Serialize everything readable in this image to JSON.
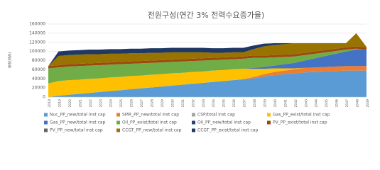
{
  "chart_data": {
    "type": "stacked_area",
    "title": "전원구성(연간 3% 전력수요증가율)",
    "y_label": "용량(MW)",
    "categories": [
      "2018",
      "2019",
      "2020",
      "2021",
      "2022",
      "2023",
      "2024",
      "2025",
      "2026",
      "2027",
      "2028",
      "2029",
      "2030",
      "2031",
      "2032",
      "2033",
      "2034",
      "2035",
      "2036",
      "2037",
      "2038",
      "2039",
      "2040",
      "2041",
      "2042",
      "2043",
      "2044",
      "2045",
      "2046",
      "2047",
      "2048",
      "2049"
    ],
    "ylim": [
      0,
      160000
    ],
    "yticks": [
      0,
      20000,
      40000,
      60000,
      80000,
      100000,
      120000,
      140000,
      160000
    ],
    "grid": true,
    "series": [
      {
        "name": "Nuc_PP_new/total inst cap",
        "color": "#5b9bd5",
        "values": [
          0,
          3000,
          5000,
          7000,
          9000,
          11000,
          13000,
          15000,
          17000,
          19000,
          21000,
          23000,
          25000,
          27000,
          29000,
          31000,
          33000,
          35000,
          37000,
          39000,
          41000,
          45000,
          48000,
          50000,
          52000,
          54000,
          55000,
          56000,
          57000,
          58000,
          58000,
          58000
        ]
      },
      {
        "name": "SMR_PP_new/total inst cap",
        "color": "#ed7d31",
        "values": [
          0,
          0,
          0,
          0,
          0,
          0,
          0,
          0,
          0,
          0,
          0,
          0,
          0,
          0,
          0,
          0,
          0,
          0,
          0,
          0,
          3000,
          5000,
          7000,
          8000,
          9000,
          10000,
          10000,
          10000,
          10000,
          10000,
          10000,
          10000
        ]
      },
      {
        "name": "CSP/total inst cap",
        "color": "#a5a5a5",
        "values": [
          0,
          0,
          0,
          0,
          0,
          0,
          0,
          0,
          0,
          0,
          0,
          0,
          0,
          0,
          0,
          0,
          0,
          0,
          0,
          0,
          0,
          0,
          0,
          0,
          0,
          0,
          0,
          0,
          0,
          0,
          0,
          0
        ]
      },
      {
        "name": "Gas_PP_exist/total inst cap",
        "color": "#ffc000",
        "values": [
          30000,
          32000,
          32000,
          31000,
          31000,
          30000,
          30000,
          29000,
          29000,
          28000,
          28000,
          27000,
          27000,
          26000,
          26000,
          25000,
          25000,
          24000,
          24000,
          23000,
          18000,
          12000,
          8000,
          5000,
          2000,
          0,
          0,
          0,
          0,
          0,
          0,
          0
        ]
      },
      {
        "name": "Gas_PP_new/total inst cap",
        "color": "#4472c4",
        "values": [
          0,
          0,
          0,
          0,
          0,
          0,
          0,
          0,
          0,
          0,
          0,
          0,
          0,
          0,
          0,
          0,
          0,
          0,
          0,
          0,
          2000,
          4000,
          6000,
          9000,
          12000,
          16000,
          20000,
          24000,
          28000,
          32000,
          36000,
          36000
        ]
      },
      {
        "name": "Oil_PP_exist/total inst cap",
        "color": "#70ad47",
        "values": [
          33000,
          30000,
          30000,
          30000,
          29000,
          29000,
          28000,
          28000,
          27000,
          27000,
          26000,
          26000,
          25000,
          25000,
          24000,
          24000,
          23000,
          23000,
          22000,
          22000,
          22000,
          20000,
          18000,
          16000,
          14000,
          12000,
          10000,
          8000,
          6000,
          4000,
          2000,
          0
        ]
      },
      {
        "name": "Oil_PP_new/total inst cap",
        "color": "#264478",
        "values": [
          0,
          0,
          0,
          0,
          0,
          0,
          0,
          0,
          0,
          0,
          0,
          0,
          0,
          0,
          0,
          0,
          0,
          0,
          0,
          0,
          0,
          0,
          0,
          0,
          0,
          0,
          0,
          0,
          0,
          0,
          0,
          0
        ]
      },
      {
        "name": "PV_PP_exist/total inst cap",
        "color": "#9e480e",
        "values": [
          5000,
          5000,
          5000,
          5000,
          5000,
          5000,
          5000,
          5000,
          5000,
          5000,
          5000,
          5000,
          5000,
          5000,
          5000,
          5000,
          5000,
          5000,
          5000,
          5000,
          5000,
          5000,
          5000,
          5000,
          5000,
          5000,
          5000,
          5000,
          5000,
          5000,
          5000,
          5000
        ]
      },
      {
        "name": "PV_PP_new/total inst cap",
        "color": "#636363",
        "values": [
          0,
          0,
          0,
          0,
          0,
          0,
          0,
          0,
          0,
          0,
          0,
          0,
          0,
          0,
          0,
          0,
          0,
          0,
          0,
          0,
          0,
          0,
          0,
          0,
          0,
          0,
          0,
          0,
          0,
          0,
          0,
          0
        ]
      },
      {
        "name": "CCGT_PP_new/total inst cap",
        "color": "#997300",
        "values": [
          0,
          20000,
          20000,
          20000,
          20000,
          19000,
          19000,
          18000,
          18000,
          17000,
          17000,
          16000,
          16000,
          15000,
          14000,
          13000,
          11000,
          10000,
          10000,
          9000,
          14000,
          20000,
          22000,
          23000,
          24000,
          21000,
          18000,
          15000,
          12000,
          9000,
          29000,
          1000
        ]
      },
      {
        "name": "CCGT_PP_exist/total inst cap",
        "color": "#1f3864",
        "values": [
          0,
          10000,
          10000,
          10000,
          10000,
          10000,
          10000,
          10000,
          10000,
          10000,
          10000,
          10000,
          10000,
          10000,
          10000,
          10000,
          10000,
          10000,
          10000,
          10000,
          8000,
          6000,
          4000,
          2000,
          0,
          0,
          0,
          0,
          0,
          0,
          0,
          0
        ]
      }
    ]
  }
}
